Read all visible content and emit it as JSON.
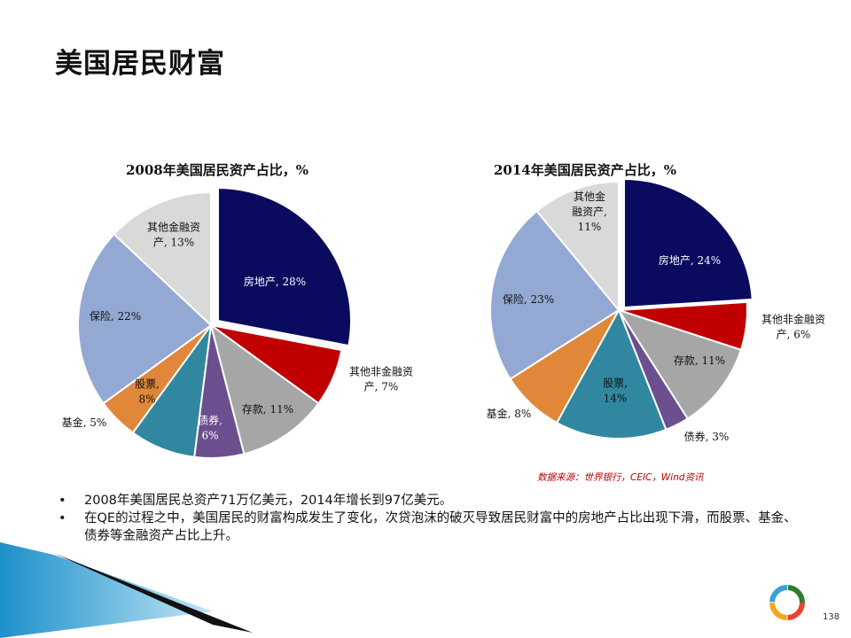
{
  "page": {
    "title": "美国居民财富",
    "page_number": "138",
    "source": "数据来源：世界银行，CEIC，Wind资讯",
    "bullets": [
      "2008年美国居民总资产71万亿美元，2014年增长到97亿美元。",
      "在QE的过程之中，美国居民的财富构成发生了变化，次贷泡沫的破灭导致居民财富中的房地产占比出现下滑，而股票、基金、债券等金融资产占比上升。"
    ],
    "colors": {
      "source_text": "#c00000",
      "logo_ring": [
        "#e8432e",
        "#f0a81c",
        "#3aa0d8",
        "#2e7d32"
      ]
    }
  },
  "chart_data": [
    {
      "type": "pie",
      "title": "2008年美国居民资产占比，%",
      "slices": [
        {
          "label": "房地产",
          "value": 28,
          "text": "房地产, 28%",
          "color": "#0a0a5e"
        },
        {
          "label": "其他非金融资产",
          "value": 7,
          "text": "其他非金融资产, 7%",
          "color": "#c00000"
        },
        {
          "label": "存款",
          "value": 11,
          "text": "存款, 11%",
          "color": "#a6a6a6"
        },
        {
          "label": "债券",
          "value": 6,
          "text": "债券, 6%",
          "color": "#6b4f8f"
        },
        {
          "label": "股票",
          "value": 8,
          "text": "股票, 8%",
          "color": "#31879f"
        },
        {
          "label": "基金",
          "value": 5,
          "text": "基金, 5%",
          "color": "#e0873a"
        },
        {
          "label": "保险",
          "value": 22,
          "text": "保险, 22%",
          "color": "#93a9d3"
        },
        {
          "label": "其他金融资产",
          "value": 13,
          "text": "其他金融资产, 13%",
          "color": "#d9d9d9"
        }
      ]
    },
    {
      "type": "pie",
      "title": "2014年美国居民资产占比，%",
      "slices": [
        {
          "label": "房地产",
          "value": 24,
          "text": "房地产, 24%",
          "color": "#0a0a5e"
        },
        {
          "label": "其他非金融资产",
          "value": 6,
          "text": "其他非金融资产, 6%",
          "color": "#c00000"
        },
        {
          "label": "存款",
          "value": 11,
          "text": "存款, 11%",
          "color": "#a6a6a6"
        },
        {
          "label": "债券",
          "value": 3,
          "text": "债券, 3%",
          "color": "#6b4f8f"
        },
        {
          "label": "股票",
          "value": 14,
          "text": "股票, 14%",
          "color": "#31879f"
        },
        {
          "label": "基金",
          "value": 8,
          "text": "基金, 8%",
          "color": "#e0873a"
        },
        {
          "label": "保险",
          "value": 23,
          "text": "保险, 23%",
          "color": "#93a9d3"
        },
        {
          "label": "其他金融资产",
          "value": 11,
          "text": "其他金融资产, 11%",
          "color": "#d9d9d9"
        }
      ]
    }
  ]
}
